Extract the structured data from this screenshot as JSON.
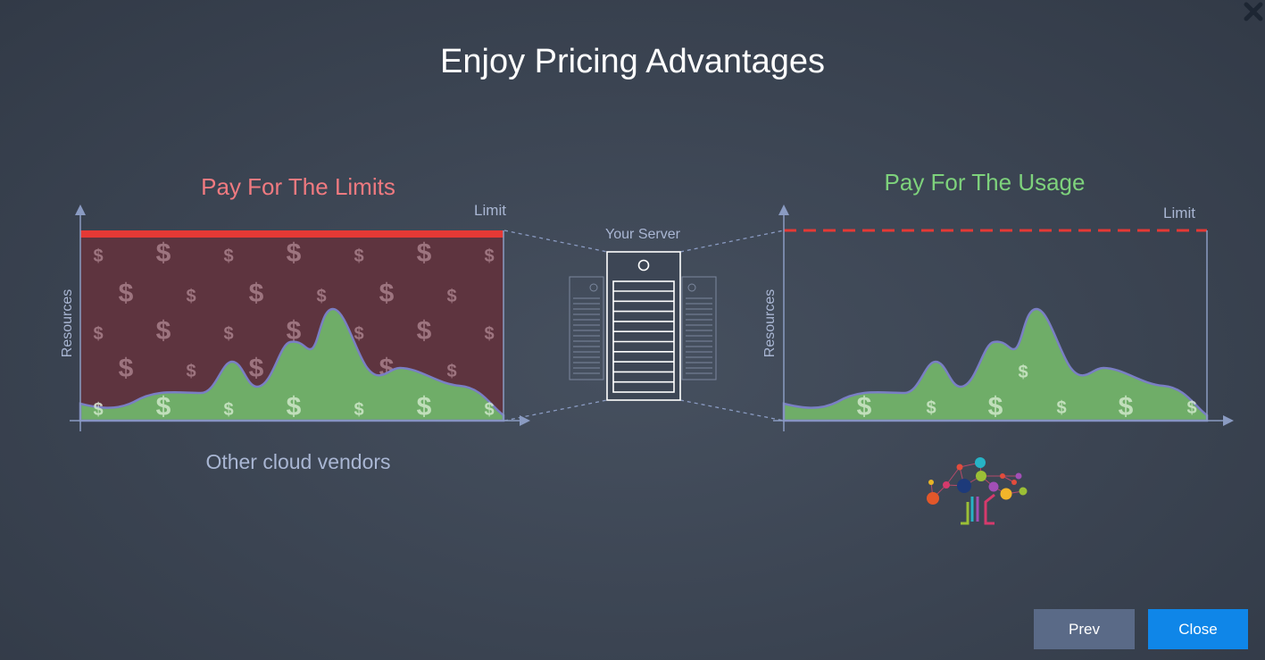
{
  "title": "Enjoy Pricing Advantages",
  "left_panel": {
    "heading": "Pay For The Limits",
    "limit_label": "Limit",
    "axis_label": "Resources",
    "caption": "Other cloud vendors",
    "heading_color": "#f07a80"
  },
  "right_panel": {
    "heading": "Pay For The Usage",
    "limit_label": "Limit",
    "axis_label": "Resources",
    "heading_color": "#7ed27c"
  },
  "server": {
    "label": "Your Server"
  },
  "currency_symbol": "$",
  "colors": {
    "limit_bar": "#e53935",
    "paid_area": "#5e343f",
    "usage_area": "#6fad68",
    "axis": "#8a9bc2",
    "prev_button": "#5a6a87",
    "close_button": "#0f86e8"
  },
  "buttons": {
    "prev": "Prev",
    "close": "Close"
  },
  "icons": {
    "close": "close-x-icon",
    "logo": "tree-network-logo"
  }
}
